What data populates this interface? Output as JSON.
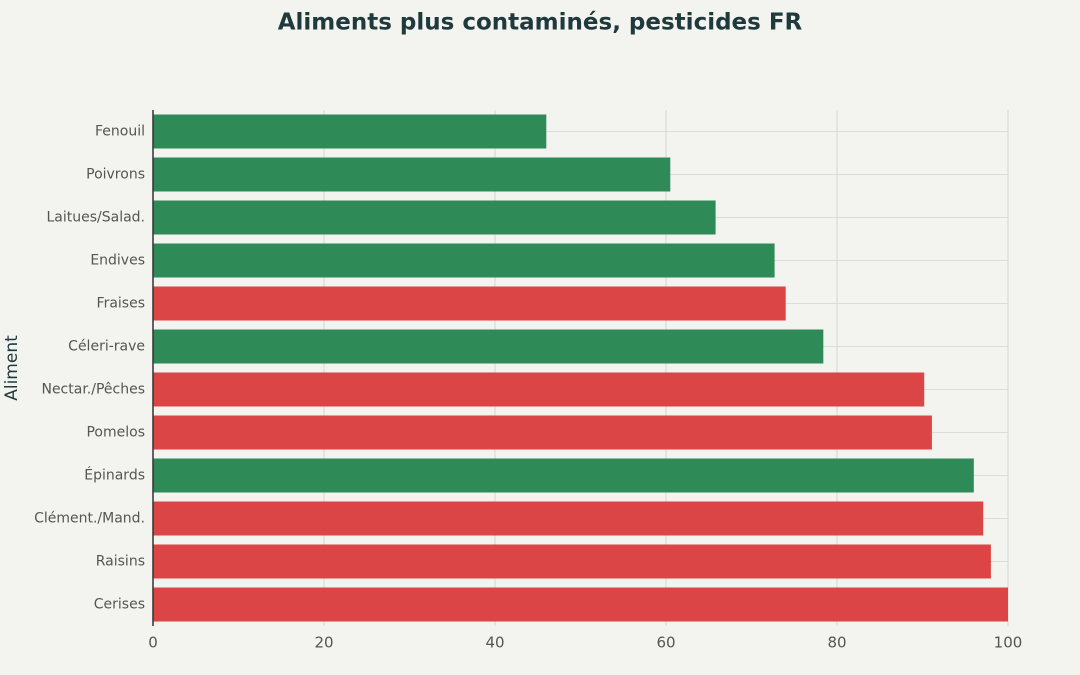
{
  "chart_data": {
    "type": "bar",
    "orientation": "horizontal",
    "title": "Aliments plus contaminés, pesticides FR",
    "y_label": "Aliment",
    "categories": [
      "Fenouil",
      "Poivrons",
      "Laitues/Salad.",
      "Endives",
      "Fraises",
      "Céleri-rave",
      "Nectar./Pêches",
      "Pomelos",
      "Épinards",
      "Clément./Mand.",
      "Raisins",
      "Cerises"
    ],
    "values": [
      46,
      60.5,
      65.8,
      72.7,
      74,
      78.4,
      90.2,
      91.1,
      96,
      97.1,
      98,
      100
    ],
    "colors": [
      "#2e8b57",
      "#2e8b57",
      "#2e8b57",
      "#2e8b57",
      "#db4545",
      "#2e8b57",
      "#db4545",
      "#db4545",
      "#2e8b57",
      "#db4545",
      "#db4545",
      "#db4545"
    ],
    "xlim": [
      0,
      100
    ],
    "xticks": [
      0,
      20,
      40,
      60,
      80,
      100
    ],
    "grid": true
  }
}
